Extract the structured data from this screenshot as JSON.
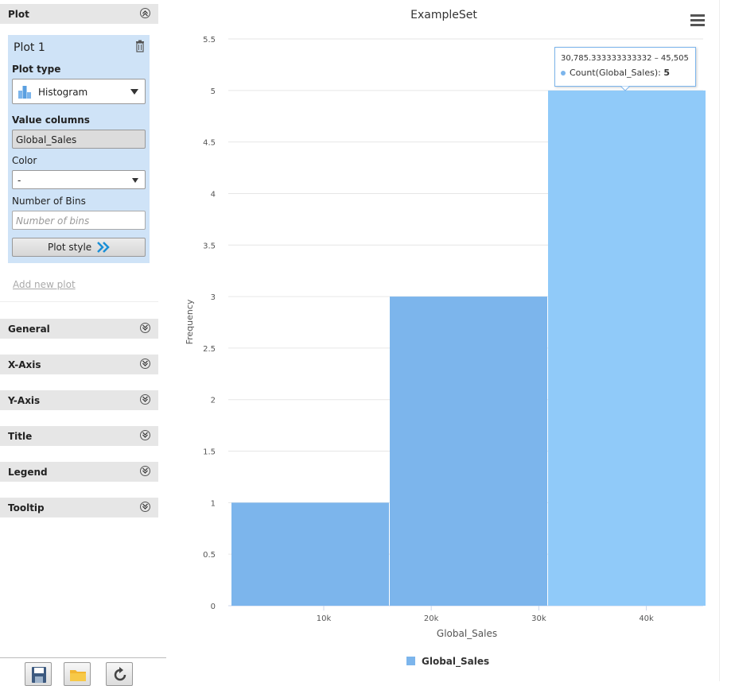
{
  "panel": {
    "plot_section": "Plot",
    "plot_card": {
      "title": "Plot 1",
      "plot_type_label": "Plot type",
      "plot_type_value": "Histogram",
      "value_columns_label": "Value columns",
      "value_column": "Global_Sales",
      "color_label": "Color",
      "color_value": "-",
      "bins_label": "Number of Bins",
      "bins_placeholder": "Number of bins",
      "plot_style_label": "Plot style"
    },
    "add_new_plot": "Add new plot",
    "sections": [
      "General",
      "X-Axis",
      "Y-Axis",
      "Title",
      "Legend",
      "Tooltip"
    ]
  },
  "toolbar": {
    "icons": [
      "save-icon",
      "open-folder-icon",
      "refresh-icon"
    ]
  },
  "tooltip": {
    "range": "30,785.333333333332 – 45,505",
    "series": "Count(Global_Sales):",
    "value": "5"
  },
  "legend": {
    "label": "Global_Sales",
    "color": "#7cb5ec"
  },
  "chart_data": {
    "type": "bar",
    "title": "ExampleSet",
    "xlabel": "Global_Sales",
    "ylabel": "Frequency",
    "ylim": [
      0,
      5.5
    ],
    "yticks": [
      "0",
      "0.5",
      "1",
      "1.5",
      "2",
      "2.5",
      "3",
      "3.5",
      "4",
      "4.5",
      "5",
      "5.5"
    ],
    "xticks": [
      {
        "label": "10k",
        "value": 10000
      },
      {
        "label": "20k",
        "value": 20000
      },
      {
        "label": "30k",
        "value": 30000
      },
      {
        "label": "40k",
        "value": 40000
      }
    ],
    "xlim": [
      1347,
      45505
    ],
    "bins": [
      {
        "start": 1347,
        "end": 16066.166666666666,
        "count": 1
      },
      {
        "start": 16066.166666666666,
        "end": 30785.333333333332,
        "count": 3
      },
      {
        "start": 30785.333333333332,
        "end": 45505,
        "count": 5
      }
    ],
    "bar_color": "#7cb5ec",
    "hover_color": "#90caf9",
    "hover_index": 2,
    "grid": true
  }
}
